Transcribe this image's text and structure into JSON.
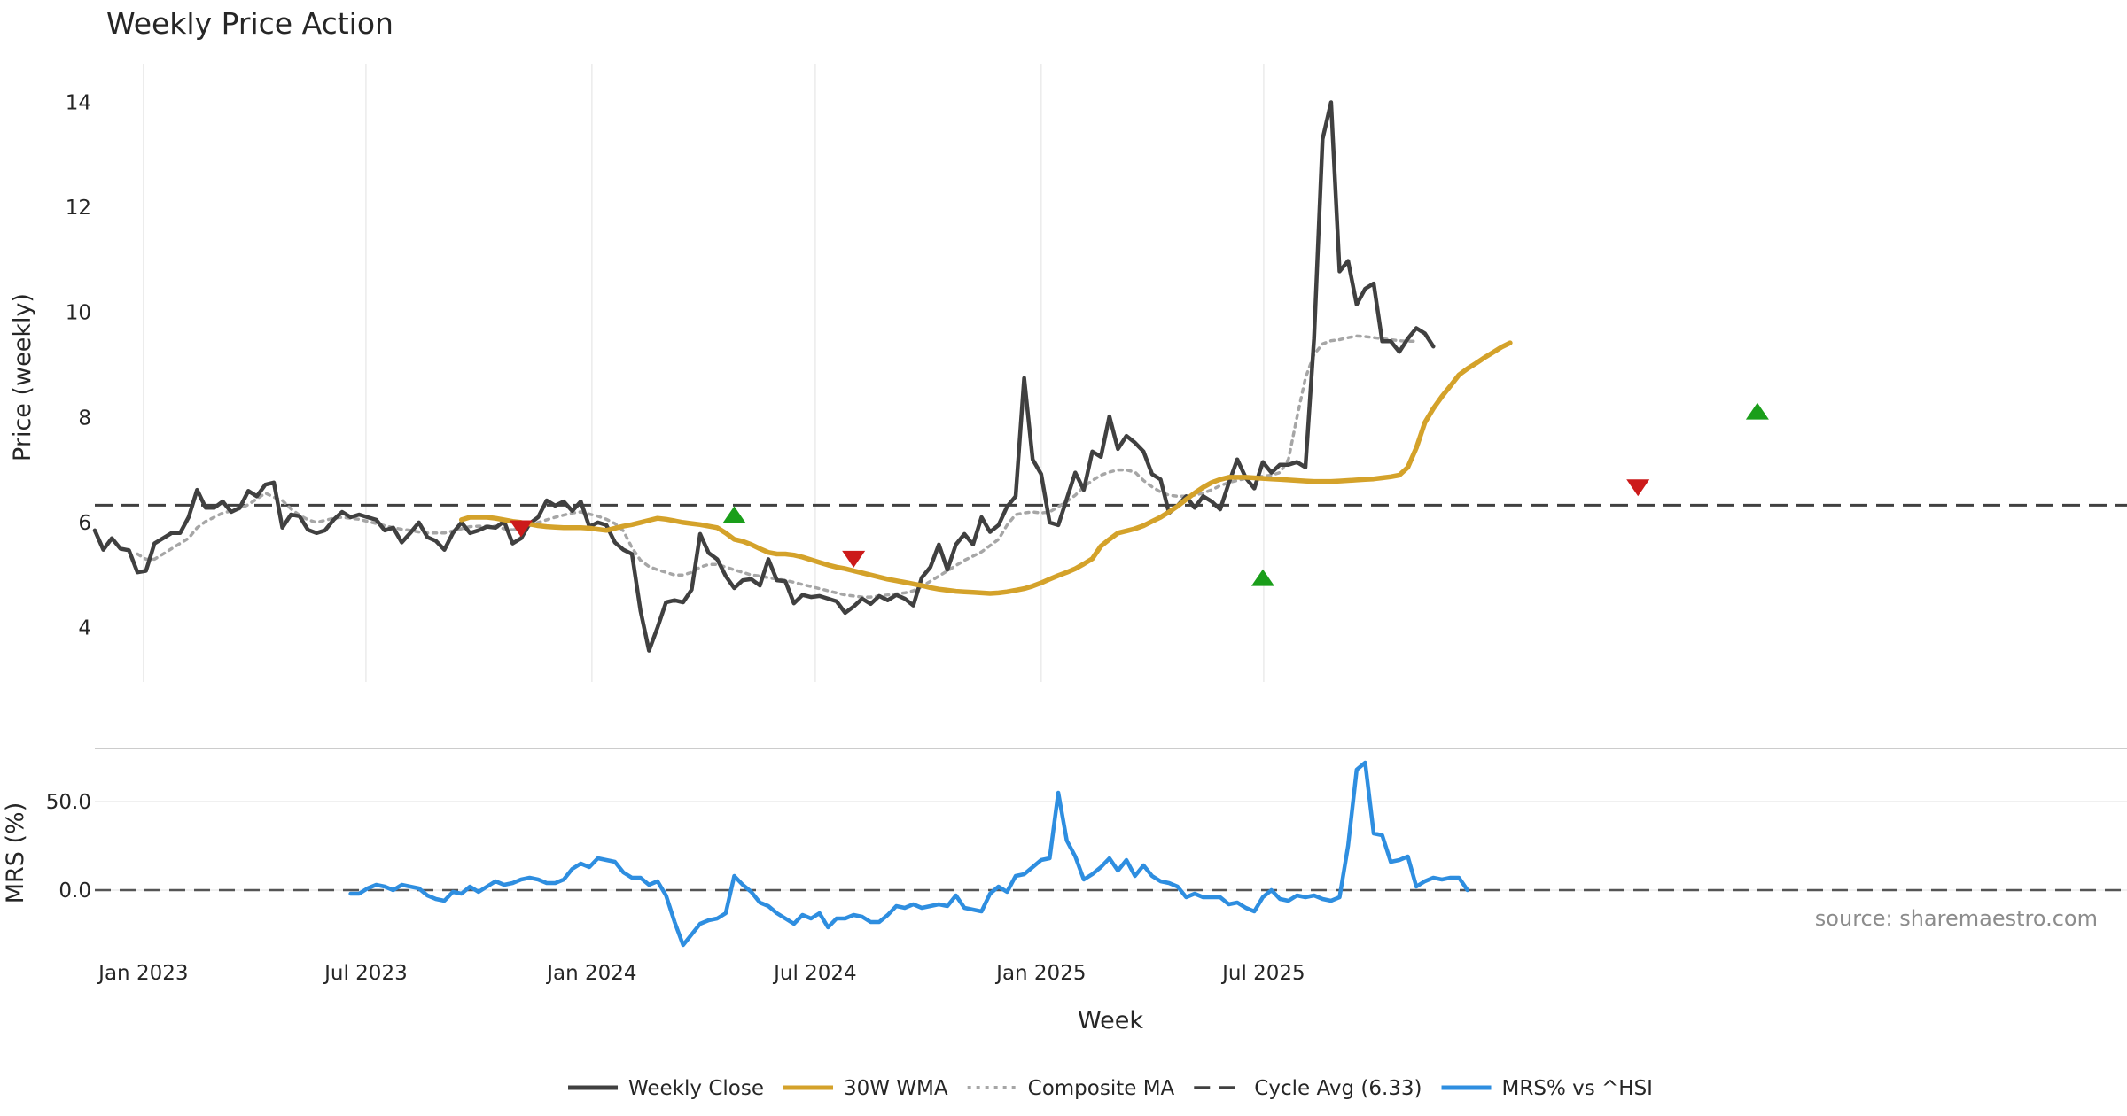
{
  "chart_data": [
    {
      "type": "line",
      "title": "Weekly Price Action",
      "ylabel": "Price (weekly)",
      "ylim": [
        3.0,
        14.6
      ],
      "yticks": [
        4,
        6,
        8,
        10,
        12,
        14
      ],
      "grid": "vertical",
      "start_date": "2022-11-25",
      "series": [
        {
          "name": "Weekly Close",
          "color": "#404040",
          "style": "solid",
          "values": [
            5.85,
            5.48,
            5.7,
            5.5,
            5.47,
            5.05,
            5.08,
            5.6,
            5.7,
            5.8,
            5.8,
            6.1,
            6.62,
            6.28,
            6.28,
            6.4,
            6.2,
            6.28,
            6.6,
            6.5,
            6.72,
            6.76,
            5.9,
            6.15,
            6.12,
            5.86,
            5.8,
            5.85,
            6.05,
            6.2,
            6.1,
            6.15,
            6.1,
            6.05,
            5.85,
            5.9,
            5.62,
            5.8,
            6.0,
            5.72,
            5.65,
            5.48,
            5.8,
            6.0,
            5.8,
            5.85,
            5.92,
            5.9,
            6.02,
            5.6,
            5.7,
            5.98,
            6.1,
            6.42,
            6.32,
            6.4,
            6.22,
            6.4,
            5.92,
            6.0,
            5.95,
            5.62,
            5.48,
            5.4,
            4.32,
            3.56,
            4.0,
            4.48,
            4.52,
            4.48,
            4.72,
            5.78,
            5.42,
            5.3,
            4.98,
            4.75,
            4.9,
            4.92,
            4.8,
            5.3,
            4.9,
            4.88,
            4.46,
            4.62,
            4.58,
            4.6,
            4.55,
            4.5,
            4.28,
            4.4,
            4.55,
            4.45,
            4.6,
            4.52,
            4.62,
            4.55,
            4.42,
            4.95,
            5.15,
            5.58,
            5.1,
            5.58,
            5.78,
            5.58,
            6.1,
            5.82,
            5.95,
            6.3,
            6.5,
            8.75,
            7.2,
            6.92,
            6.0,
            5.95,
            6.45,
            6.95,
            6.62,
            7.35,
            7.25,
            8.02,
            7.4,
            7.65,
            7.52,
            7.35,
            6.92,
            6.82,
            6.18,
            6.32,
            6.5,
            6.28,
            6.5,
            6.4,
            6.25,
            6.75,
            7.2,
            6.85,
            6.65,
            7.15,
            6.95,
            7.1,
            7.1,
            7.15,
            7.05,
            9.5,
            13.3,
            14.0,
            10.78,
            10.98,
            10.15,
            10.45,
            10.55,
            9.45,
            9.45,
            9.25,
            9.5,
            9.7,
            9.6,
            9.35
          ]
        },
        {
          "name": "30W WMA",
          "color": "#d4a22a",
          "style": "solid",
          "start_index": 43,
          "values": [
            6.05,
            6.1,
            6.1,
            6.1,
            6.08,
            6.05,
            6.02,
            6.0,
            5.97,
            5.94,
            5.92,
            5.91,
            5.9,
            5.9,
            5.9,
            5.89,
            5.87,
            5.85,
            5.89,
            5.93,
            5.96,
            6.0,
            6.04,
            6.08,
            6.06,
            6.03,
            6.0,
            5.98,
            5.96,
            5.93,
            5.9,
            5.8,
            5.68,
            5.64,
            5.58,
            5.5,
            5.43,
            5.4,
            5.4,
            5.38,
            5.34,
            5.29,
            5.24,
            5.19,
            5.15,
            5.12,
            5.08,
            5.04,
            5.0,
            4.96,
            4.92,
            4.89,
            4.86,
            4.83,
            4.8,
            4.76,
            4.73,
            4.71,
            4.69,
            4.68,
            4.67,
            4.66,
            4.65,
            4.66,
            4.68,
            4.71,
            4.74,
            4.79,
            4.85,
            4.92,
            4.99,
            5.05,
            5.12,
            5.21,
            5.31,
            5.55,
            5.68,
            5.8,
            5.84,
            5.88,
            5.94,
            6.02,
            6.1,
            6.2,
            6.31,
            6.44,
            6.56,
            6.67,
            6.76,
            6.82,
            6.86,
            6.86,
            6.86,
            6.85,
            6.84,
            6.83,
            6.82,
            6.81,
            6.8,
            6.79,
            6.78,
            6.78,
            6.78,
            6.79,
            6.8,
            6.81,
            6.82,
            6.83,
            6.85,
            6.87,
            6.9,
            7.05,
            7.42,
            7.9,
            8.17,
            8.4,
            8.6,
            8.81,
            8.93,
            9.03,
            9.14,
            9.24,
            9.34,
            9.42
          ]
        },
        {
          "name": "Composite MA",
          "color": "#a6a6a6",
          "style": "dotted",
          "start_index": 5,
          "values": [
            5.4,
            5.3,
            5.3,
            5.4,
            5.5,
            5.6,
            5.7,
            5.9,
            6.02,
            6.1,
            6.18,
            6.22,
            6.26,
            6.34,
            6.45,
            6.56,
            6.48,
            6.42,
            6.26,
            6.14,
            6.05,
            6.0,
            6.04,
            6.08,
            6.1,
            6.08,
            6.06,
            6.02,
            5.98,
            5.94,
            5.9,
            5.87,
            5.85,
            5.82,
            5.8,
            5.8,
            5.8,
            5.84,
            5.88,
            5.92,
            5.93,
            5.93,
            5.93,
            5.88,
            5.86,
            5.88,
            5.94,
            6.0,
            6.05,
            6.1,
            6.14,
            6.18,
            6.2,
            6.16,
            6.12,
            6.06,
            5.98,
            5.84,
            5.52,
            5.28,
            5.16,
            5.1,
            5.05,
            5.0,
            5.0,
            5.05,
            5.15,
            5.2,
            5.2,
            5.15,
            5.1,
            5.05,
            5.0,
            4.98,
            4.95,
            4.92,
            4.9,
            4.86,
            4.82,
            4.78,
            4.74,
            4.7,
            4.66,
            4.62,
            4.6,
            4.58,
            4.58,
            4.6,
            4.62,
            4.64,
            4.66,
            4.7,
            4.78,
            4.88,
            4.98,
            5.08,
            5.18,
            5.28,
            5.36,
            5.44,
            5.56,
            5.68,
            5.95,
            6.15,
            6.18,
            6.2,
            6.18,
            6.2,
            6.3,
            6.4,
            6.52,
            6.68,
            6.8,
            6.9,
            6.96,
            7.0,
            7.0,
            6.96,
            6.8,
            6.68,
            6.58,
            6.52,
            6.5,
            6.5,
            6.52,
            6.56,
            6.62,
            6.7,
            6.76,
            6.8,
            6.84,
            6.86,
            6.88,
            6.9,
            6.95,
            7.2,
            8.0,
            8.75,
            9.2,
            9.4,
            9.46,
            9.48,
            9.52,
            9.55,
            9.54,
            9.52,
            9.5,
            9.48,
            9.46,
            9.45,
            9.45
          ]
        },
        {
          "name": "Cycle Avg (6.33)",
          "color": "#404040",
          "style": "dashed",
          "value": 6.33
        }
      ],
      "signals": [
        {
          "type": "sell",
          "index": 50,
          "value": 5.88,
          "color": "#cc1a1a"
        },
        {
          "type": "buy",
          "index": 75,
          "value": 6.15,
          "color": "#1a9e1a"
        },
        {
          "type": "sell",
          "index": 89,
          "value": 5.3,
          "color": "#cc1a1a"
        },
        {
          "type": "buy",
          "index": 137,
          "value": 4.95,
          "color": "#1a9e1a"
        },
        {
          "type": "sell",
          "index": 181,
          "value": 6.66,
          "color": "#cc1a1a"
        },
        {
          "type": "buy",
          "index": 195,
          "value": 8.12,
          "color": "#1a9e1a"
        }
      ]
    },
    {
      "type": "line",
      "ylabel": "MRS (%)",
      "ylim": [
        -38,
        80
      ],
      "yticks": [
        0.0,
        50.0
      ],
      "ytick_labels": [
        "0.0",
        "50.0"
      ],
      "zero_line": {
        "value": 0,
        "color": "#555555",
        "style": "dashed"
      },
      "xlabel": "Week",
      "xticks": [
        {
          "index": 5.7,
          "label": "Jan 2023"
        },
        {
          "index": 31.8,
          "label": "Jul 2023"
        },
        {
          "index": 58.3,
          "label": "Jan 2024"
        },
        {
          "index": 84.5,
          "label": "Jul 2024"
        },
        {
          "index": 111.0,
          "label": "Jan 2025"
        },
        {
          "index": 137.1,
          "label": "Jul 2025"
        }
      ],
      "series": [
        {
          "name": "MRS% vs ^HSI",
          "color": "#2e8ee0",
          "style": "solid",
          "start_index": 30,
          "values": [
            -2,
            -2,
            1,
            3,
            2,
            0,
            3,
            2,
            1,
            -3,
            -5,
            -6,
            -1,
            -2,
            2,
            -1,
            2,
            5,
            3,
            4,
            6,
            7,
            6,
            4,
            4,
            6,
            12,
            15,
            13,
            18,
            17,
            16,
            10,
            7,
            7,
            3,
            5,
            -3,
            -18,
            -31,
            -25,
            -19,
            -17,
            -16,
            -13,
            8,
            3,
            -1,
            -7,
            -9,
            -13,
            -16,
            -19,
            -14,
            -16,
            -13,
            -21,
            -16,
            -16,
            -14,
            -15,
            -18,
            -18,
            -14,
            -9,
            -10,
            -8,
            -10,
            -9,
            -8,
            -9,
            -3,
            -10,
            -11,
            -12,
            -2,
            2,
            -1,
            8,
            9,
            13,
            17,
            18,
            55,
            28,
            19,
            6,
            9,
            13,
            18,
            11,
            17,
            8,
            14,
            8,
            5,
            4,
            2,
            -4,
            -2,
            -4,
            -4,
            -4,
            -8,
            -7,
            -10,
            -12,
            -4,
            0,
            -5,
            -6,
            -3,
            -4,
            -3,
            -5,
            -6,
            -4,
            25,
            68,
            72,
            32,
            31,
            16,
            17,
            19,
            2,
            5,
            7,
            6,
            7,
            7,
            0
          ]
        }
      ],
      "annotation": "source: sharemaestro.com"
    }
  ],
  "legend": {
    "placement": "bottom-center",
    "items": [
      {
        "label": "Weekly Close",
        "color": "#404040",
        "style": "solid"
      },
      {
        "label": "30W WMA",
        "color": "#d4a22a",
        "style": "solid"
      },
      {
        "label": "Composite MA",
        "color": "#a6a6a6",
        "style": "dotted"
      },
      {
        "label": "Cycle Avg (6.33)",
        "color": "#404040",
        "style": "dashed"
      },
      {
        "label": "MRS% vs ^HSI",
        "color": "#2e8ee0",
        "style": "solid"
      }
    ]
  }
}
